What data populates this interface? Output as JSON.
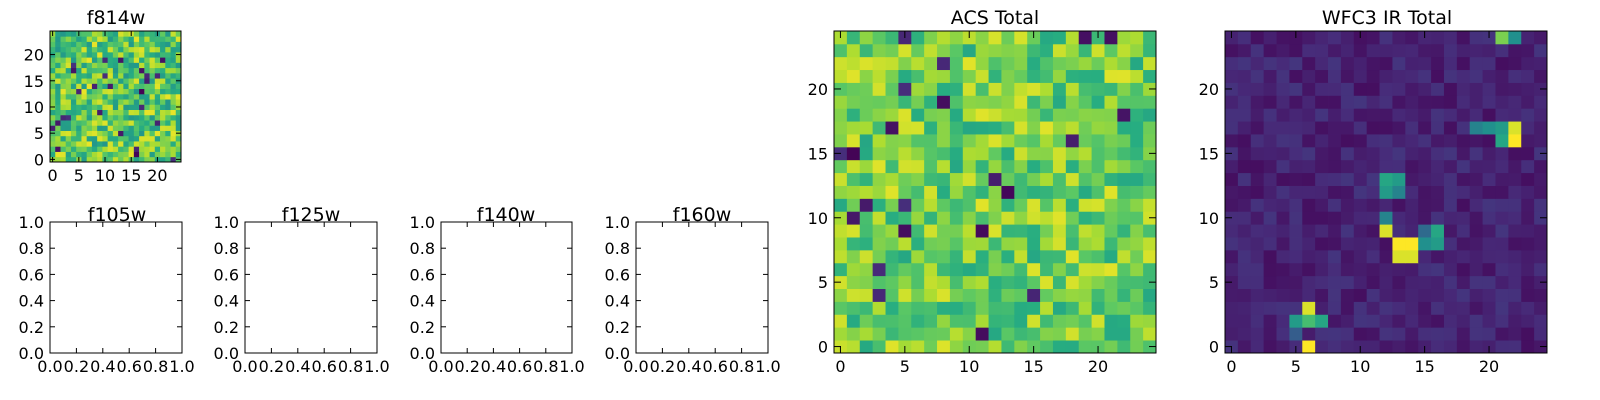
{
  "figure": {
    "panels": [
      {
        "id": "f814w",
        "title": "f814w"
      },
      {
        "id": "f105w",
        "title": "f105w"
      },
      {
        "id": "f125w",
        "title": "f125w"
      },
      {
        "id": "f140w",
        "title": "f140w"
      },
      {
        "id": "f160w",
        "title": "f160w"
      },
      {
        "id": "acs",
        "title": "ACS Total"
      },
      {
        "id": "wfc3",
        "title": "WFC3 IR Total"
      }
    ]
  },
  "chart_data": [
    {
      "type": "heatmap",
      "title": "f814w",
      "grid_size": [
        25,
        25
      ],
      "xlim": [
        -0.5,
        24.5
      ],
      "ylim": [
        -0.5,
        24.5
      ],
      "xticks": [
        "0",
        "5",
        "10",
        "15",
        "20"
      ],
      "yticks": [
        "0",
        "5",
        "10",
        "15",
        "20"
      ],
      "colormap": "viridis",
      "description": "random noise image, values span full colormap",
      "value_range": [
        0.0,
        1.0
      ],
      "base_level": 0.75,
      "noise_level": 0.22
    },
    {
      "type": "scatter",
      "title": "f105w",
      "empty": true,
      "xlim": [
        0.0,
        1.0
      ],
      "ylim": [
        0.0,
        1.0
      ],
      "xticks": [
        "0.0",
        "0.2",
        "0.4",
        "0.6",
        "0.8",
        "1.0"
      ],
      "yticks": [
        "0.0",
        "0.2",
        "0.4",
        "0.6",
        "0.8",
        "1.0"
      ]
    },
    {
      "type": "scatter",
      "title": "f125w",
      "empty": true,
      "xlim": [
        0.0,
        1.0
      ],
      "ylim": [
        0.0,
        1.0
      ],
      "xticks": [
        "0.0",
        "0.2",
        "0.4",
        "0.6",
        "0.8",
        "1.0"
      ],
      "yticks": [
        "0.0",
        "0.2",
        "0.4",
        "0.6",
        "0.8",
        "1.0"
      ]
    },
    {
      "type": "scatter",
      "title": "f140w",
      "empty": true,
      "xlim": [
        0.0,
        1.0
      ],
      "ylim": [
        0.0,
        1.0
      ],
      "xticks": [
        "0.0",
        "0.2",
        "0.4",
        "0.6",
        "0.8",
        "1.0"
      ],
      "yticks": [
        "0.0",
        "0.2",
        "0.4",
        "0.6",
        "0.8",
        "1.0"
      ]
    },
    {
      "type": "scatter",
      "title": "f160w",
      "empty": true,
      "xlim": [
        0.0,
        1.0
      ],
      "ylim": [
        0.0,
        1.0
      ],
      "xticks": [
        "0.0",
        "0.2",
        "0.4",
        "0.6",
        "0.8",
        "1.0"
      ],
      "yticks": [
        "0.0",
        "0.2",
        "0.4",
        "0.6",
        "0.8",
        "1.0"
      ]
    },
    {
      "type": "heatmap",
      "title": "ACS Total",
      "grid_size": [
        25,
        25
      ],
      "xlim": [
        -0.5,
        24.5
      ],
      "ylim": [
        -0.5,
        24.5
      ],
      "xticks": [
        "0",
        "5",
        "10",
        "15",
        "20"
      ],
      "yticks": [
        "0",
        "5",
        "10",
        "15",
        "20"
      ],
      "colormap": "viridis",
      "value_range": [
        0.0,
        1.0
      ],
      "base_level": 0.78,
      "noise_level": 0.18
    },
    {
      "type": "heatmap",
      "title": "WFC3 IR Total",
      "grid_size": [
        25,
        25
      ],
      "xlim": [
        -0.5,
        24.5
      ],
      "ylim": [
        -0.5,
        24.5
      ],
      "xticks": [
        "0",
        "5",
        "10",
        "15",
        "20"
      ],
      "yticks": [
        "0",
        "5",
        "10",
        "15",
        "20"
      ],
      "colormap": "viridis",
      "value_range": [
        0.0,
        1.0
      ],
      "base_level": 0.1,
      "noise_level": 0.06,
      "bright_pixels": [
        {
          "x": 21,
          "y": 24,
          "v": 0.8
        },
        {
          "x": 22,
          "y": 24,
          "v": 0.5
        },
        {
          "x": 19,
          "y": 17,
          "v": 0.45
        },
        {
          "x": 20,
          "y": 17,
          "v": 0.5
        },
        {
          "x": 21,
          "y": 17,
          "v": 0.55
        },
        {
          "x": 22,
          "y": 17,
          "v": 0.95
        },
        {
          "x": 22,
          "y": 16,
          "v": 1.0
        },
        {
          "x": 21,
          "y": 16,
          "v": 0.6
        },
        {
          "x": 12,
          "y": 13,
          "v": 0.6
        },
        {
          "x": 13,
          "y": 13,
          "v": 0.55
        },
        {
          "x": 12,
          "y": 12,
          "v": 0.55
        },
        {
          "x": 13,
          "y": 12,
          "v": 0.45
        },
        {
          "x": 12,
          "y": 10,
          "v": 0.45
        },
        {
          "x": 12,
          "y": 9,
          "v": 0.95
        },
        {
          "x": 13,
          "y": 8,
          "v": 1.0
        },
        {
          "x": 14,
          "y": 8,
          "v": 1.0
        },
        {
          "x": 13,
          "y": 7,
          "v": 0.95
        },
        {
          "x": 14,
          "y": 7,
          "v": 0.95
        },
        {
          "x": 15,
          "y": 8,
          "v": 0.5
        },
        {
          "x": 16,
          "y": 8,
          "v": 0.55
        },
        {
          "x": 16,
          "y": 9,
          "v": 0.6
        },
        {
          "x": 15,
          "y": 9,
          "v": 0.35
        },
        {
          "x": 6,
          "y": 3,
          "v": 0.95
        },
        {
          "x": 6,
          "y": 2,
          "v": 0.7
        },
        {
          "x": 5,
          "y": 2,
          "v": 0.55
        },
        {
          "x": 7,
          "y": 2,
          "v": 0.6
        },
        {
          "x": 6,
          "y": 0,
          "v": 1.0
        },
        {
          "x": 5,
          "y": 1,
          "v": 0.3
        }
      ]
    }
  ]
}
